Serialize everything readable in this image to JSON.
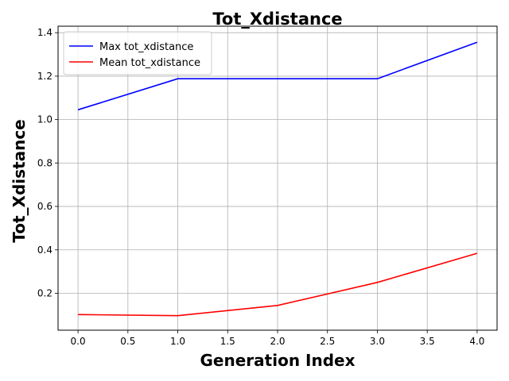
{
  "chart_data": {
    "type": "line",
    "title": "Tot_Xdistance",
    "xlabel": "Generation Index",
    "ylabel": "Tot_Xdistance",
    "x": [
      0.0,
      1.0,
      2.0,
      3.0,
      4.0
    ],
    "xlim": [
      -0.2,
      4.2
    ],
    "ylim": [
      0.03,
      1.43
    ],
    "xticks": [
      0.0,
      0.5,
      1.0,
      1.5,
      2.0,
      2.5,
      3.0,
      3.5,
      4.0
    ],
    "xtick_labels": [
      "0.0",
      "0.5",
      "1.0",
      "1.5",
      "2.0",
      "2.5",
      "3.0",
      "3.5",
      "4.0"
    ],
    "yticks": [
      0.2,
      0.4,
      0.6,
      0.8,
      1.0,
      1.2,
      1.4
    ],
    "ytick_labels": [
      "0.2",
      "0.4",
      "0.6",
      "0.8",
      "1.0",
      "1.2",
      "1.4"
    ],
    "grid": true,
    "legend_position": "top-left",
    "series": [
      {
        "name": "Max tot_xdistance",
        "color": "#0000ff",
        "values": [
          1.045,
          1.188,
          1.188,
          1.188,
          1.356
        ]
      },
      {
        "name": "Mean tot_xdistance",
        "color": "#ff0000",
        "values": [
          0.102,
          0.097,
          0.144,
          0.25,
          0.384
        ]
      }
    ]
  }
}
